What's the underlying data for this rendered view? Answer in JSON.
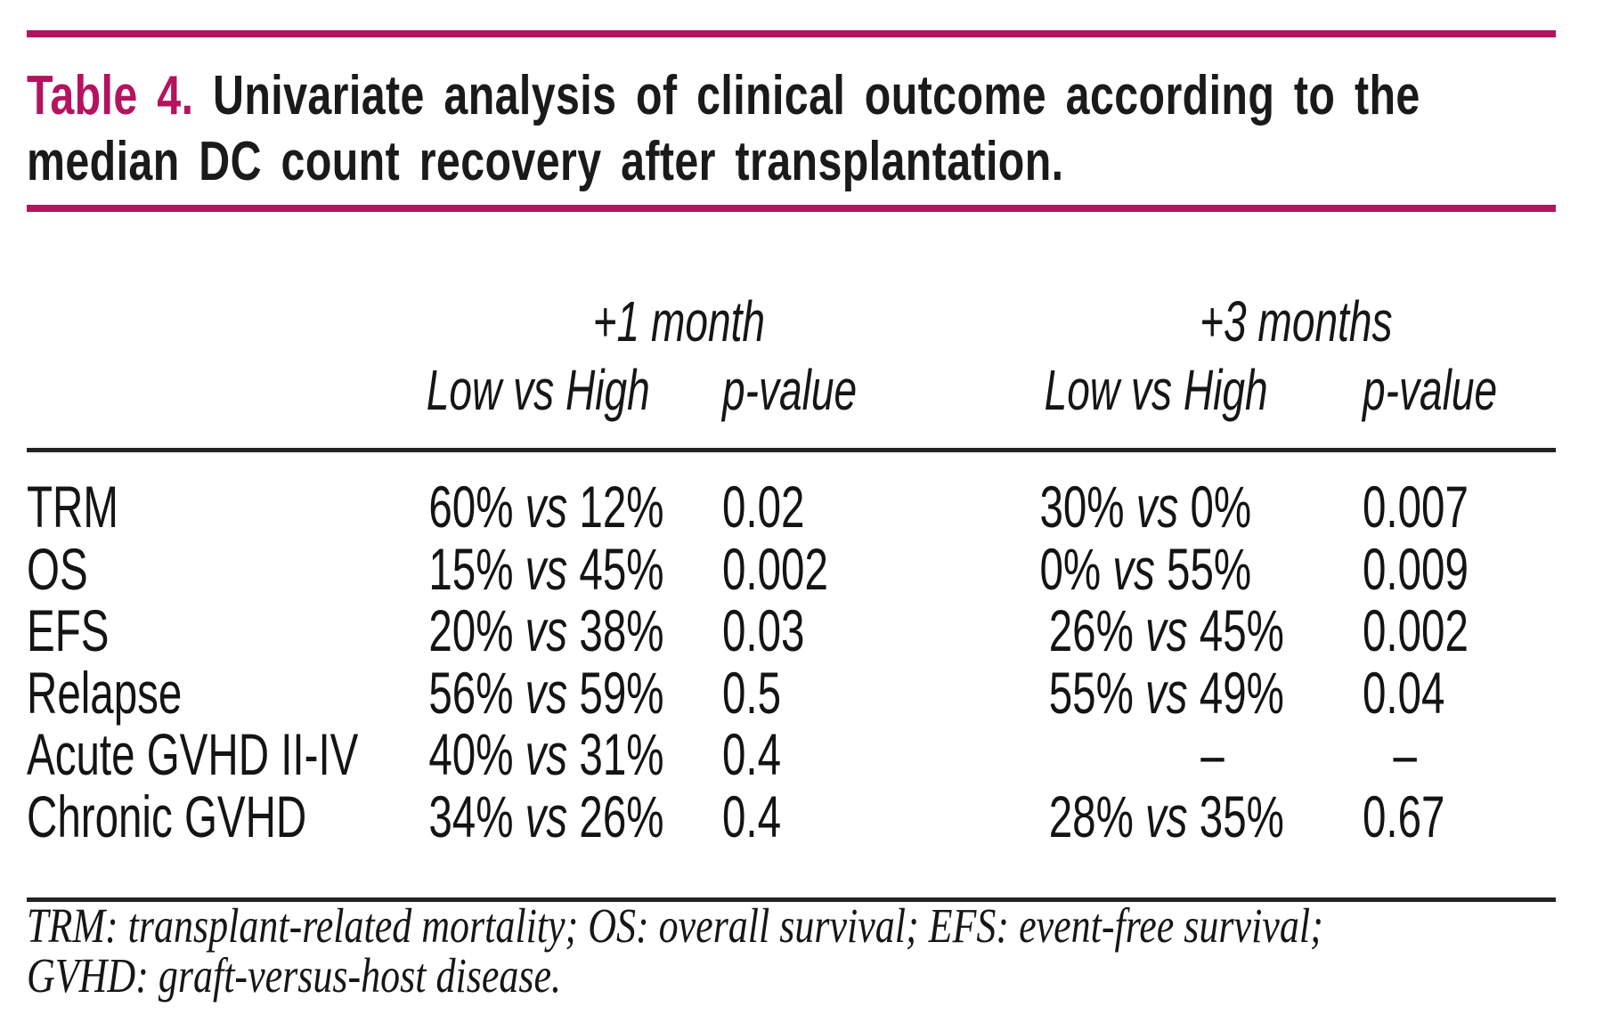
{
  "title": {
    "number_label": "Table 4.",
    "line1": "Univariate analysis of clinical outcome according to the",
    "line2": "median DC count recovery after transplantation."
  },
  "columns": {
    "group_1": "+1 month",
    "group_2": "+3 months",
    "low_vs_high_1": "Low vs High",
    "p_value_1": "p-value",
    "low_vs_high_2": "Low vs High",
    "p_value_2": "p-value"
  },
  "table": {
    "rows": [
      {
        "label": "TRM",
        "m1": "60% vs 12%",
        "p1": "0.02",
        "m3": "30% vs 0%",
        "p3": "0.007"
      },
      {
        "label": "OS",
        "m1": "15% vs 45%",
        "p1": "0.002",
        "m3": "0% vs 55%",
        "p3": "0.009"
      },
      {
        "label": "EFS",
        "m1": "20% vs 38%",
        "p1": "0.03",
        "m3": "26% vs 45%",
        "p3": "0.002"
      },
      {
        "label": "Relapse",
        "m1": "56% vs 59%",
        "p1": "0.5",
        "m3": "55% vs 49%",
        "p3": "0.04"
      },
      {
        "label": "Acute GVHD II-IV",
        "m1": "40% vs 31%",
        "p1": "0.4",
        "m3": "–",
        "p3": "–"
      },
      {
        "label": "Chronic GVHD",
        "m1": "34% vs 26%",
        "p1": "0.4",
        "m3": "28% vs 35%",
        "p3": "0.67"
      }
    ]
  },
  "footnote": {
    "line1": "TRM: transplant-related mortality; OS: overall survival; EFS: event-free survival;",
    "line2": "GVHD: graft-versus-host disease."
  },
  "colors": {
    "accent_magenta": "#b5135f",
    "text_black": "#151515",
    "rule_black": "#242424"
  }
}
